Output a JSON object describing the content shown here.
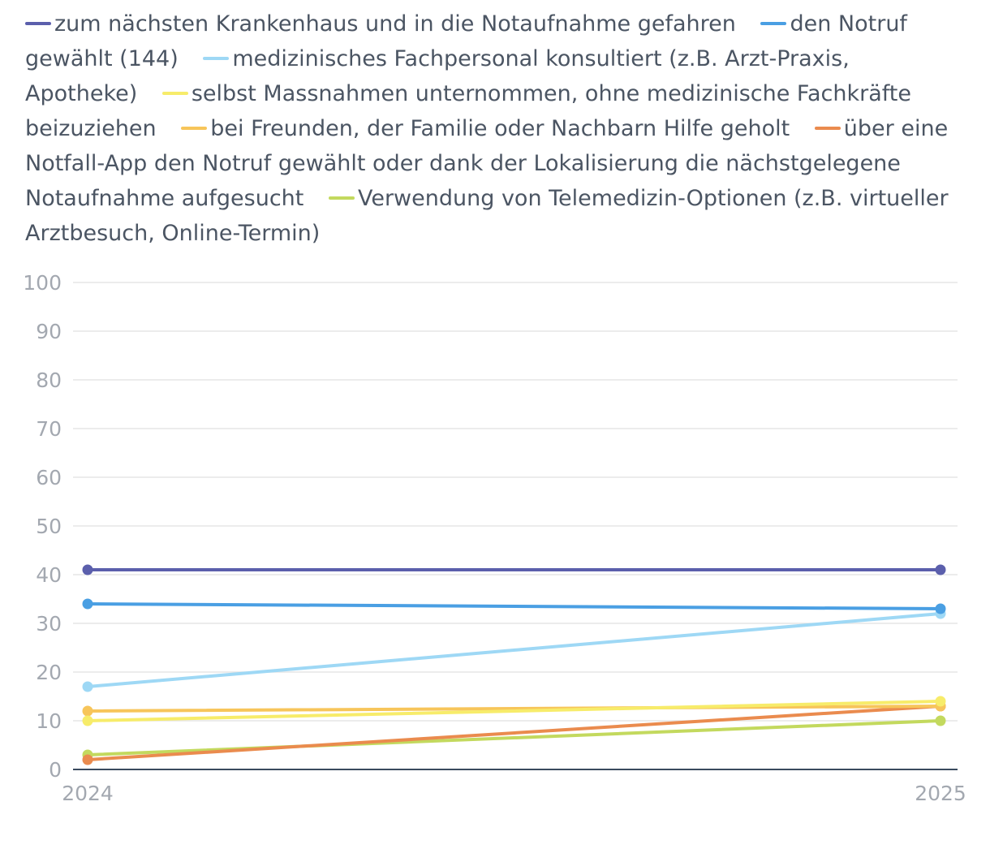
{
  "chart_data": {
    "type": "line",
    "title": "",
    "xlabel": "",
    "ylabel": "",
    "x": [
      "2024",
      "2025"
    ],
    "ylim": [
      0,
      100
    ],
    "yticks": [
      0,
      10,
      20,
      30,
      40,
      50,
      60,
      70,
      80,
      90,
      100
    ],
    "grid": true,
    "legend_position": "top",
    "series": [
      {
        "name": "zum nächsten Krankenhaus und in die Notaufnahme gefahren",
        "color": "#5b5fac",
        "values": [
          41,
          41
        ]
      },
      {
        "name": "den Notruf gewählt (144)",
        "color": "#4a9fe3",
        "values": [
          34,
          33
        ]
      },
      {
        "name": "medizinisches Fachpersonal konsultiert (z.B. Arzt-Praxis, Apotheke)",
        "color": "#9ed8f5",
        "values": [
          17,
          32
        ]
      },
      {
        "name": "selbst Massnahmen unternommen, ohne medizinische Fachkräfte beizuziehen",
        "color": "#f7ec6a",
        "values": [
          10,
          14
        ]
      },
      {
        "name": "bei Freunden, der Familie oder Nachbarn Hilfe geholt",
        "color": "#f7c55a",
        "values": [
          12,
          13
        ]
      },
      {
        "name": "über eine Notfall-App den Notruf gewählt oder dank der Lokalisierung die nächstgelegene Notaufnahme aufgesucht",
        "color": "#ea8b4e",
        "values": [
          2,
          13
        ]
      },
      {
        "name": "Verwendung von Telemedizin-Optionen (z.B. virtueller Arztbesuch, Online-Termin)",
        "color": "#c3d95e",
        "values": [
          3,
          10
        ]
      }
    ]
  }
}
